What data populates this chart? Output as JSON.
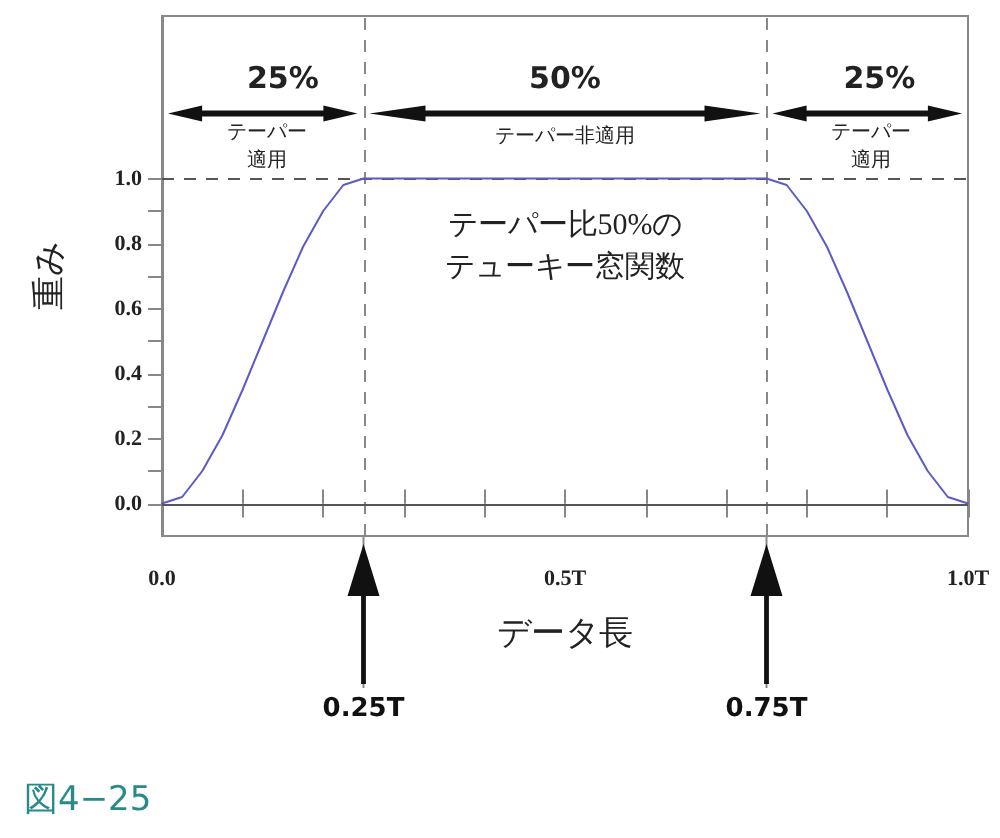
{
  "chart_data": {
    "type": "line",
    "xlabel": "データ長",
    "ylabel": "重み",
    "x": [
      0,
      0.025,
      0.05,
      0.075,
      0.1,
      0.125,
      0.15,
      0.175,
      0.2,
      0.225,
      0.25,
      0.5,
      0.75,
      0.775,
      0.8,
      0.825,
      0.85,
      0.875,
      0.9,
      0.925,
      0.95,
      0.975,
      1
    ],
    "series": [
      {
        "color": "#5a5ac8",
        "values": [
          0,
          0.02,
          0.1,
          0.21,
          0.35,
          0.5,
          0.65,
          0.79,
          0.9,
          0.98,
          1,
          1,
          1,
          0.98,
          0.9,
          0.79,
          0.65,
          0.5,
          0.35,
          0.21,
          0.1,
          0.02,
          0
        ]
      }
    ],
    "xlim": [
      0,
      1
    ],
    "ylim": [
      -0.1,
      1.5
    ],
    "xticks": [
      {
        "value": 0,
        "label": "0.0"
      },
      {
        "value": 0.1,
        "label": null
      },
      {
        "value": 0.2,
        "label": null
      },
      {
        "value": 0.3,
        "label": null
      },
      {
        "value": 0.4,
        "label": null
      },
      {
        "value": 0.5,
        "label": "0.5T"
      },
      {
        "value": 0.6,
        "label": null
      },
      {
        "value": 0.7,
        "label": null
      },
      {
        "value": 0.8,
        "label": null
      },
      {
        "value": 0.9,
        "label": null
      },
      {
        "value": 1,
        "label": "1.0T"
      }
    ],
    "yticks": [
      {
        "value": 0,
        "label": "0.0"
      },
      {
        "value": 0.1,
        "label": null
      },
      {
        "value": 0.2,
        "label": "0.2"
      },
      {
        "value": 0.3,
        "label": null
      },
      {
        "value": 0.4,
        "label": "0.4"
      },
      {
        "value": 0.5,
        "label": null
      },
      {
        "value": 0.6,
        "label": "0.6"
      },
      {
        "value": 0.7,
        "label": null
      },
      {
        "value": 0.8,
        "label": "0.8"
      },
      {
        "value": 0.9,
        "label": null
      },
      {
        "value": 1,
        "label": "1.0"
      }
    ],
    "ref_lines": [
      {
        "axis": "x",
        "value": 0.25,
        "label": "0.25T",
        "color": "#888888",
        "line_style": "dashed"
      },
      {
        "axis": "x",
        "value": 0.75,
        "label": "0.75T",
        "color": "#888888",
        "line_style": "dashed"
      },
      {
        "axis": "y",
        "value": 1,
        "color": "#555555",
        "line_style": "dashed"
      },
      {
        "axis": "y",
        "value": 0,
        "color": "#555555",
        "line_style": "solid"
      }
    ],
    "annotations": [
      "25%",
      "50%",
      "25%",
      "テーパー適用",
      "テーパー非適用",
      "テーパー適用",
      "テーパー比50%のテューキー窓関数",
      "図4−25"
    ],
    "grid": false,
    "marker": "none",
    "line_style": "solid"
  }
}
